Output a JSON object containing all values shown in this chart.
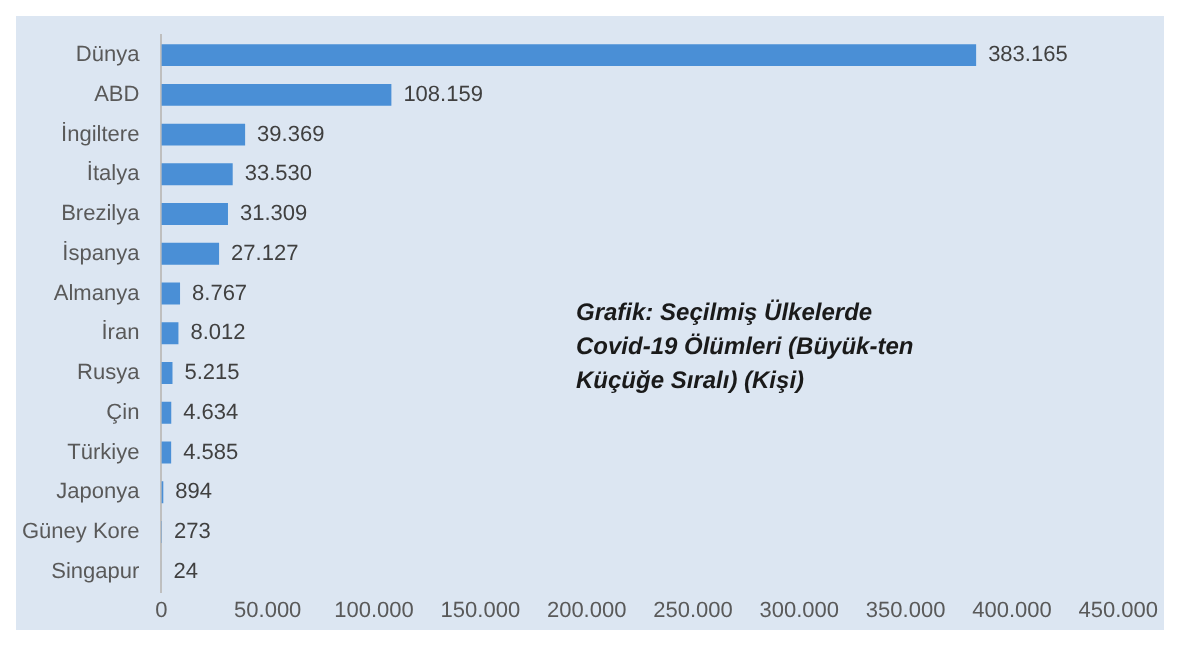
{
  "chart_data": {
    "type": "bar",
    "orientation": "horizontal",
    "categories": [
      "Dünya",
      "ABD",
      "İngiltere",
      "İtalya",
      "Brezilya",
      "İspanya",
      "Almanya",
      "İran",
      "Rusya",
      "Çin",
      "Türkiye",
      "Japonya",
      "Güney Kore",
      "Singapur"
    ],
    "values": [
      383165,
      108159,
      39369,
      33530,
      31309,
      27127,
      8767,
      8012,
      5215,
      4634,
      4585,
      894,
      273,
      24
    ],
    "value_labels": [
      "383.165",
      "108.159",
      "39.369",
      "33.530",
      "31.309",
      "27.127",
      "8.767",
      "8.012",
      "5.215",
      "4.634",
      "4.585",
      "894",
      "273",
      "24"
    ],
    "color": "#4a8fd6",
    "xlim": [
      0,
      450000
    ],
    "xticks": [
      0,
      {
        "value": 50000,
        "label": "50.000"
      },
      {
        "value": 100000,
        "label": "100.000"
      },
      {
        "value": 150000,
        "label": "150.000"
      },
      {
        "value": 200000,
        "label": "200.000"
      },
      {
        "value": 250000,
        "label": "250.000"
      },
      {
        "value": 300000,
        "label": "300.000"
      },
      {
        "value": 350000,
        "label": "350.000"
      },
      {
        "value": 400000,
        "label": "400.000"
      },
      {
        "value": 450000,
        "label": "450.000"
      }
    ],
    "annotations": [
      "Grafik: Seçilmiş Ülkelerde Covid-19 Ölümleri (Büyük-ten Küçüğe Sıralı) (Kişi)"
    ]
  }
}
